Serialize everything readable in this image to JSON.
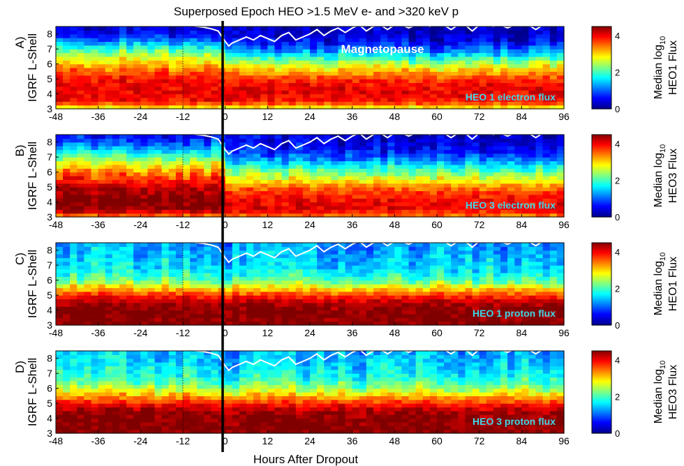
{
  "chart_data": {
    "title": "Superposed Epoch HEO >1.5 MeV e- and >320 keV p",
    "type": "heatmap",
    "xlabel": "Hours After Dropout",
    "x_ticks": [
      "-48",
      "-36",
      "-24",
      "-12",
      "0",
      "12",
      "24",
      "36",
      "48",
      "60",
      "72",
      "84",
      "96"
    ],
    "x_range": [
      -48,
      96
    ],
    "y_ticks": [
      "3",
      "4",
      "5",
      "6",
      "7",
      "8"
    ],
    "y_range": [
      3,
      8.5
    ],
    "colorbar_ticks": [
      "0",
      "2",
      "4"
    ],
    "colorbar_range": [
      0,
      4.5
    ],
    "colormap": [
      "#00008f",
      "#0000ff",
      "#0080ff",
      "#00ffff",
      "#80ff80",
      "#ffff00",
      "#ff8000",
      "#ff0000",
      "#800000"
    ],
    "magnetopause_line_color": "#ffffff",
    "epoch_line_color": "#000000",
    "annotation_magnetopause": "Magnetopause",
    "panels": [
      {
        "tag": "A)",
        "ylabel": "IGRF L-Shell",
        "colorbar_label": "Median log10",
        "colorbar_label_base": "Median log",
        "colorbar_label_sub": "10",
        "colorbar_label2": "HEO1 Flux",
        "annotation": "HEO 1 electron flux",
        "profile": {
          "L": [
            3,
            3.5,
            4,
            4.5,
            5,
            5.5,
            6,
            6.5,
            7,
            7.5,
            8,
            8.5
          ],
          "pre": [
            2.6,
            3.9,
            4.0,
            4.0,
            3.9,
            3.6,
            3.1,
            2.6,
            2.0,
            1.2,
            0.6,
            0.3
          ],
          "post": [
            2.6,
            3.9,
            4.0,
            4.0,
            3.7,
            3.2,
            2.5,
            1.8,
            1.0,
            0.5,
            0.3,
            0.2
          ]
        }
      },
      {
        "tag": "B)",
        "ylabel": "IGRF L-Shell",
        "colorbar_label": "Median log10",
        "colorbar_label_base": "Median log",
        "colorbar_label_sub": "10",
        "colorbar_label2": "HEO3 Flux",
        "annotation": "HEO 3 electron flux",
        "profile": {
          "L": [
            3,
            3.5,
            4,
            4.5,
            5,
            5.5,
            6,
            6.5,
            7,
            7.5,
            8,
            8.5
          ],
          "pre": [
            3.3,
            4.4,
            4.5,
            4.4,
            4.2,
            3.8,
            3.4,
            2.8,
            2.2,
            1.5,
            0.9,
            0.5
          ],
          "post": [
            3.3,
            4.0,
            4.0,
            3.8,
            3.4,
            2.8,
            2.2,
            1.6,
            1.0,
            0.6,
            0.4,
            0.3
          ]
        }
      },
      {
        "tag": "C)",
        "ylabel": "IGRF L-Shell",
        "colorbar_label": "Median log10",
        "colorbar_label_base": "Median log",
        "colorbar_label_sub": "10",
        "colorbar_label2": "HEO1 Flux",
        "annotation": "HEO 1 proton flux",
        "profile": {
          "L": [
            3,
            3.5,
            4,
            4.5,
            5,
            5.5,
            6,
            6.5,
            7,
            7.5,
            8,
            8.5
          ],
          "pre": [
            4.5,
            4.5,
            4.5,
            4.4,
            3.8,
            3.0,
            2.2,
            1.8,
            1.6,
            1.5,
            1.4,
            1.3
          ],
          "post": [
            4.5,
            4.5,
            4.5,
            4.3,
            3.7,
            2.9,
            2.1,
            1.7,
            1.5,
            1.4,
            1.3,
            1.2
          ]
        }
      },
      {
        "tag": "D)",
        "ylabel": "IGRF L-Shell",
        "colorbar_label": "Median log10",
        "colorbar_label_base": "Median log",
        "colorbar_label_sub": "10",
        "colorbar_label2": "HEO3 Flux",
        "annotation": "HEO 3 proton flux",
        "profile": {
          "L": [
            3,
            3.5,
            4,
            4.5,
            5,
            5.5,
            6,
            6.5,
            7,
            7.5,
            8,
            8.5
          ],
          "pre": [
            4.5,
            4.5,
            4.5,
            4.4,
            3.9,
            3.2,
            2.5,
            2.0,
            1.8,
            1.6,
            1.5,
            1.4
          ],
          "post": [
            4.5,
            4.5,
            4.5,
            4.3,
            3.8,
            3.1,
            2.4,
            1.9,
            1.7,
            1.5,
            1.4,
            1.3
          ]
        }
      }
    ],
    "magnetopause": {
      "x": [
        -48,
        -40,
        -32,
        -24,
        -16,
        -10,
        -8,
        -6,
        -4,
        -2,
        0,
        1,
        2,
        4,
        6,
        8,
        10,
        12,
        14,
        16,
        18,
        20,
        22,
        24,
        26,
        28,
        30,
        32,
        34,
        36,
        38,
        40,
        42,
        44,
        46,
        48,
        50,
        52,
        54,
        56,
        58,
        60,
        62,
        64,
        66,
        68,
        70,
        72,
        74,
        76,
        78,
        80,
        82,
        84,
        86,
        88,
        90,
        92,
        94,
        96
      ],
      "y": [
        8.6,
        8.6,
        8.6,
        8.6,
        8.6,
        8.55,
        8.5,
        8.45,
        8.35,
        8.2,
        7.5,
        7.2,
        7.4,
        7.6,
        7.8,
        7.6,
        7.9,
        7.7,
        7.5,
        7.9,
        8.1,
        7.6,
        7.8,
        8.0,
        8.3,
        7.9,
        8.2,
        8.4,
        8.1,
        8.4,
        8.6,
        8.2,
        8.5,
        8.6,
        8.3,
        8.6,
        8.6,
        8.4,
        8.6,
        8.6,
        8.5,
        8.6,
        8.6,
        8.3,
        8.6,
        8.6,
        8.2,
        8.6,
        8.6,
        8.5,
        8.6,
        8.4,
        8.6,
        8.6,
        8.6,
        8.3,
        8.6,
        8.6,
        8.6,
        8.6
      ]
    }
  }
}
